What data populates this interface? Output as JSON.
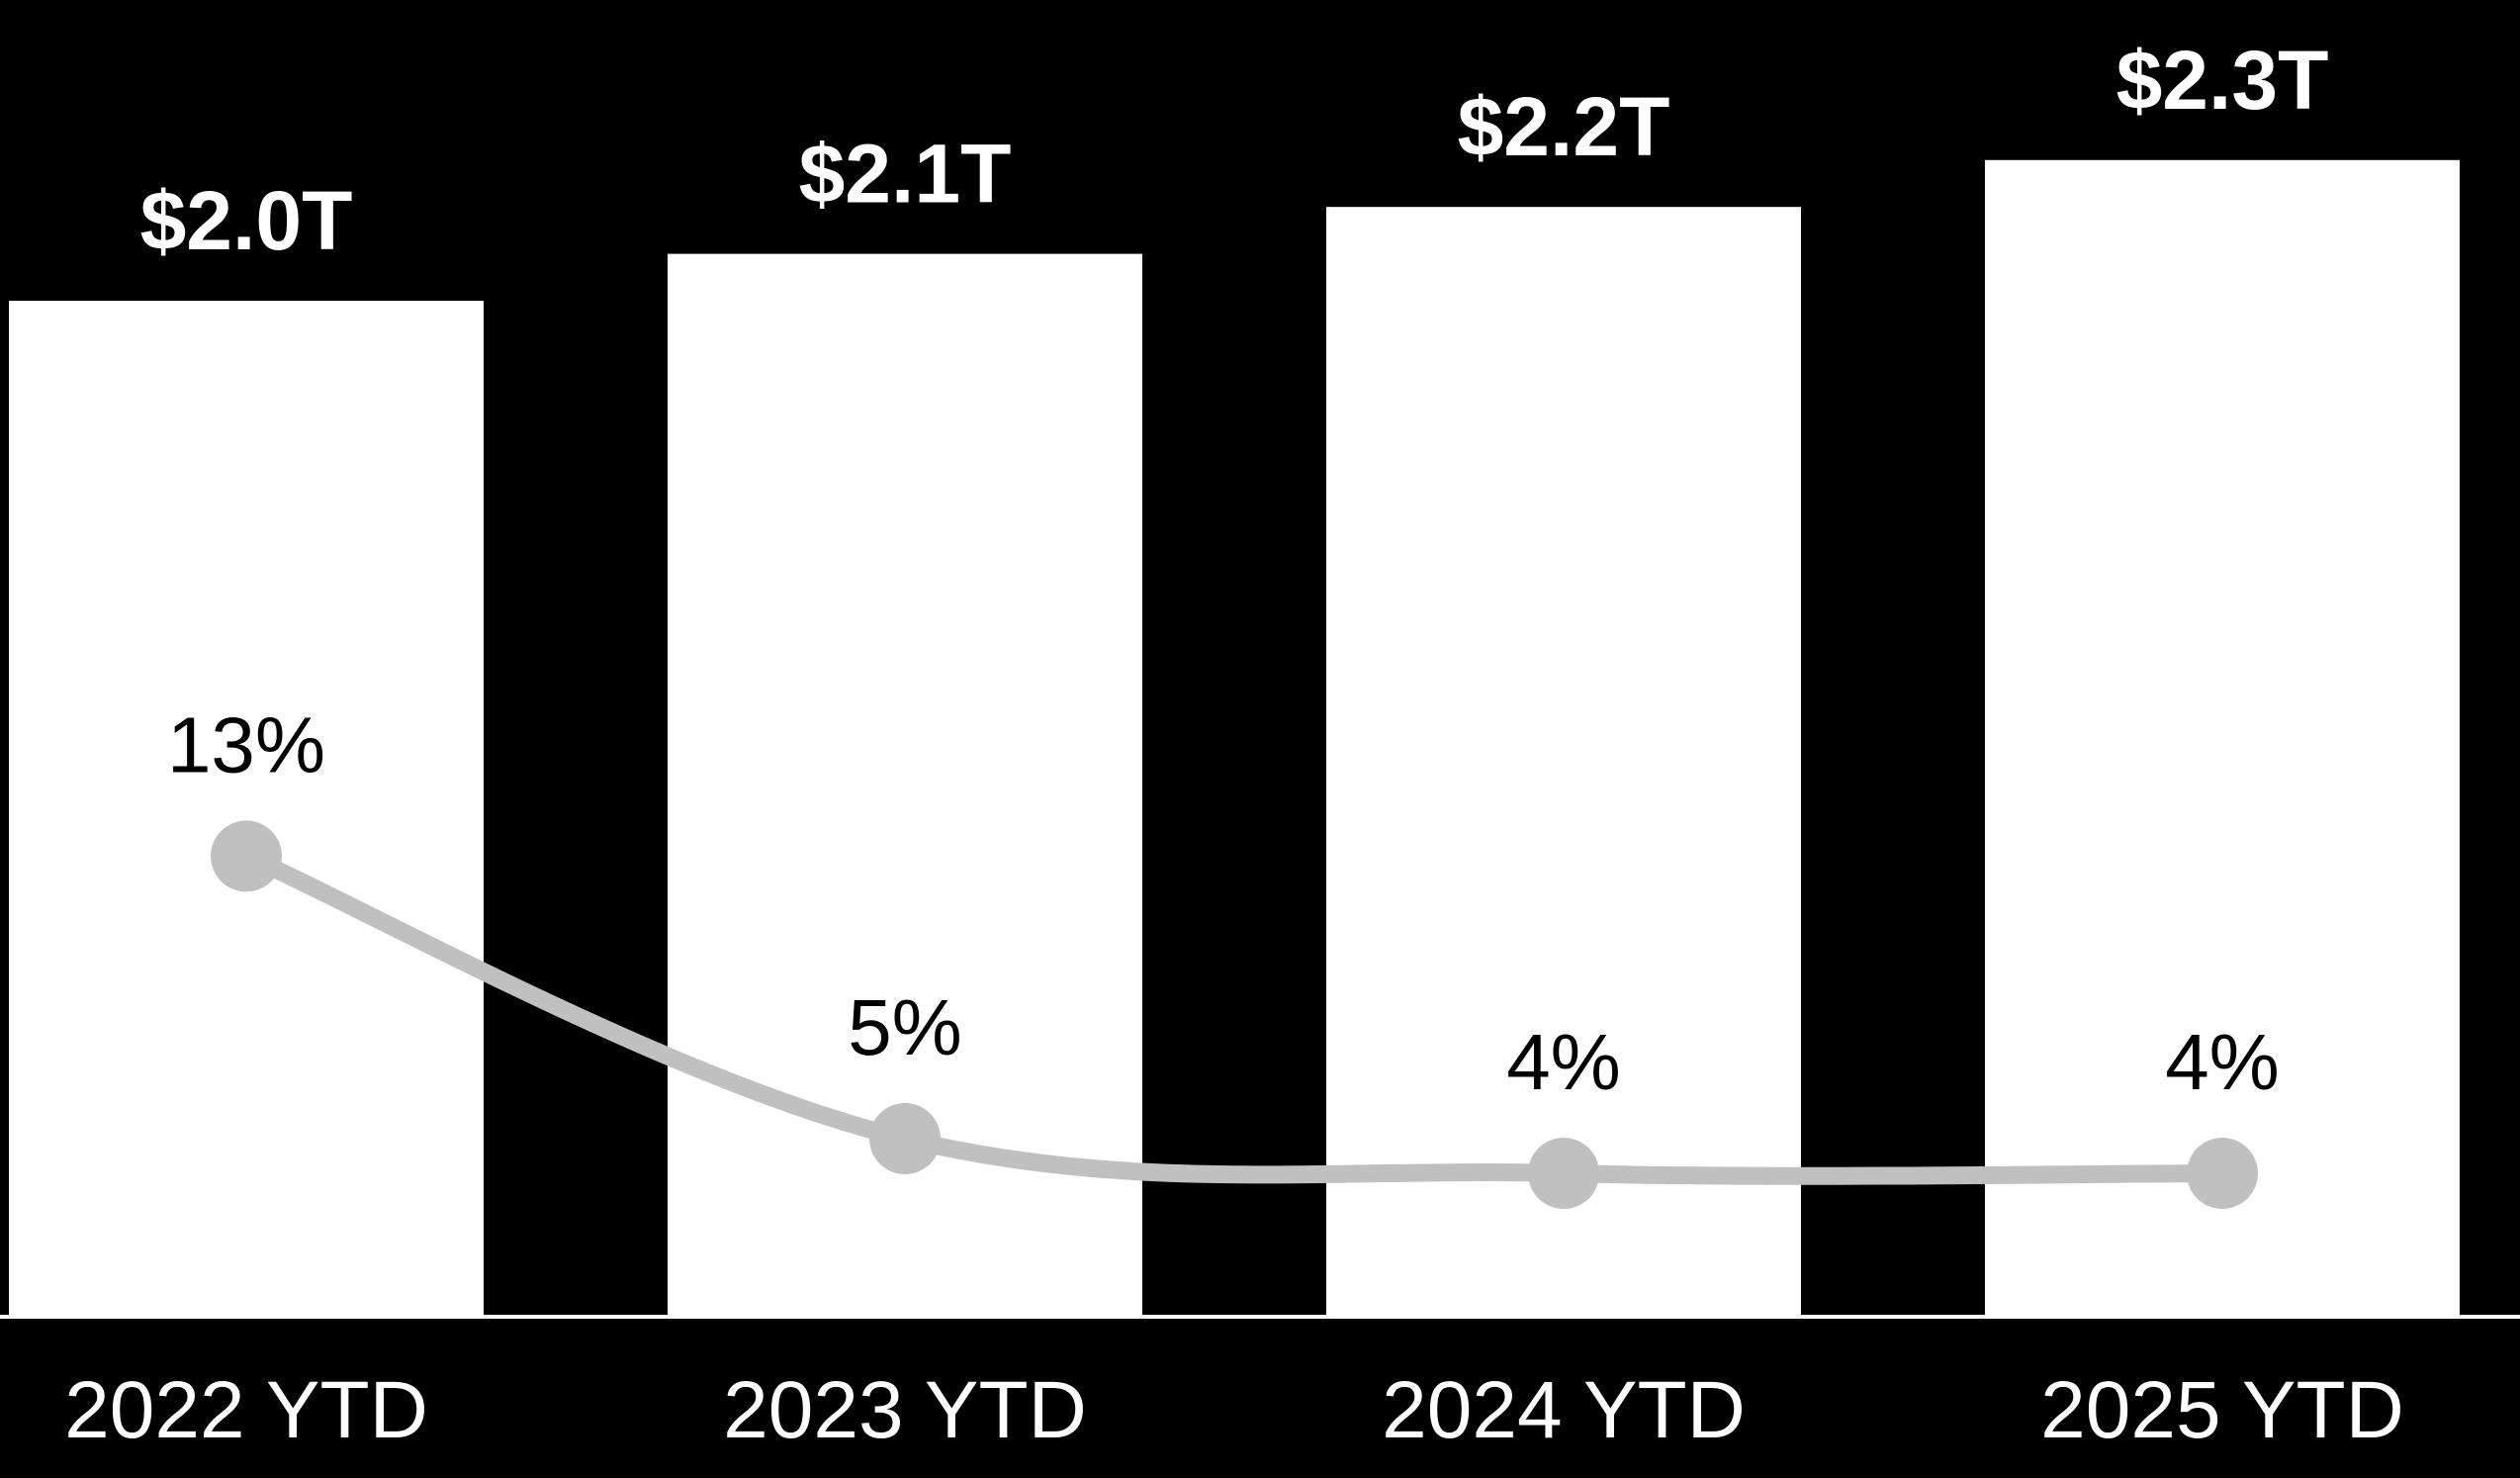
{
  "chart_data": {
    "type": "bar",
    "categories": [
      "2022 YTD",
      "2023 YTD",
      "2024 YTD",
      "2025 YTD"
    ],
    "series": [
      {
        "type": "bar",
        "values": [
          2.0,
          2.1,
          2.2,
          2.3
        ],
        "labels": [
          "$2.0T",
          "$2.1T",
          "$2.2T",
          "$2.3T"
        ]
      },
      {
        "type": "line",
        "values": [
          13,
          5,
          4,
          4
        ],
        "labels": [
          "13%",
          "5%",
          "4%",
          "4%"
        ]
      }
    ],
    "grid": false,
    "legend": "none",
    "colors": {
      "background": "#000000",
      "bars": "#ffffff",
      "line": "#c0c0c0",
      "baseline": "#ffffff"
    }
  }
}
